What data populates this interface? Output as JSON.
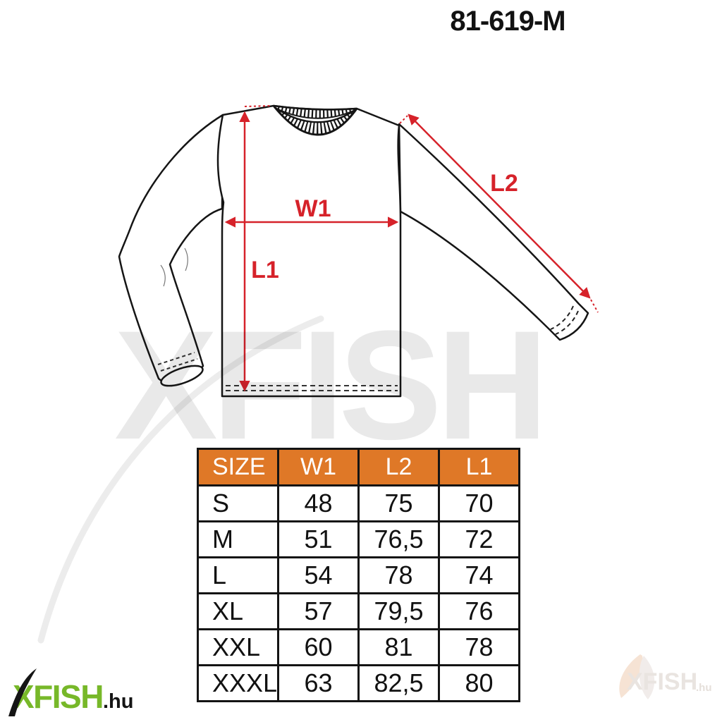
{
  "title": "81-619-M",
  "diagram": {
    "labels": {
      "w1": "W1",
      "l1": "L1",
      "l2": "L2"
    },
    "arrow_color": "#d6222a",
    "outline_color": "#151515"
  },
  "table": {
    "headers": [
      "SIZE",
      "W1",
      "L2",
      "L1"
    ],
    "rows": [
      [
        "S",
        "48",
        "75",
        "70"
      ],
      [
        "M",
        "51",
        "76,5",
        "72"
      ],
      [
        "L",
        "54",
        "78",
        "74"
      ],
      [
        "XL",
        "57",
        "79,5",
        "76"
      ],
      [
        "XXL",
        "60",
        "81",
        "78"
      ],
      [
        "XXXL",
        "63",
        "82,5",
        "80"
      ]
    ],
    "header_bg": "#df7827",
    "header_text_color": "#ffffff"
  },
  "watermark": {
    "big_text": "XFISH",
    "corner_text": "XFISH",
    "corner_suffix": ".hu"
  },
  "logo": {
    "brand": "XFISH",
    "suffix": ".hu",
    "brand_color": "#77b829"
  }
}
